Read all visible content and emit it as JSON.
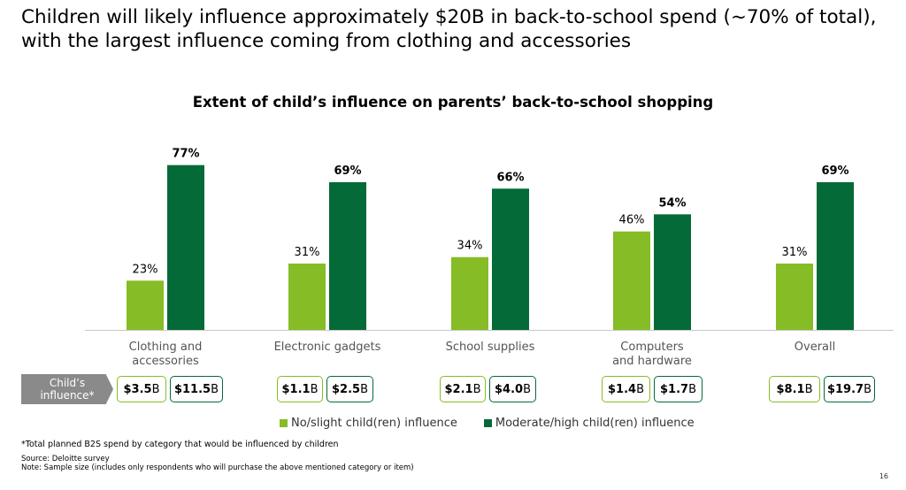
{
  "headline": "Children will likely influence approximately $20B in back-to-school spend (~70% of total), with the largest influence coming from clothing and accessories",
  "colors": {
    "light": "#86bc25",
    "dark": "#046a38"
  },
  "chart_data": {
    "type": "bar",
    "title": "Extent of child’s influence on parents’ back-to-school shopping",
    "categories": [
      [
        "Clothing and",
        "accessories"
      ],
      [
        "Electronic gadgets"
      ],
      [
        "School supplies"
      ],
      [
        "Computers",
        "and hardware"
      ],
      [
        "Overall"
      ]
    ],
    "series": [
      {
        "name": "No/slight child(ren) influence",
        "values": [
          23,
          31,
          34,
          46,
          31
        ],
        "labels": [
          "23%",
          "31%",
          "34%",
          "46%",
          "31%"
        ]
      },
      {
        "name": "Moderate/high child(ren) influence",
        "values": [
          77,
          69,
          66,
          54,
          69
        ],
        "labels": [
          "77%",
          "69%",
          "66%",
          "54%",
          "69%"
        ]
      }
    ],
    "ylim": [
      0,
      100
    ],
    "xlabel": "",
    "ylabel": ""
  },
  "influence_row": {
    "label_line1": "Child’s",
    "label_line2": "influence*",
    "items": [
      {
        "low": {
          "amount": "$3.5",
          "unit": "B"
        },
        "high": {
          "amount": "$11.5",
          "unit": "B"
        }
      },
      {
        "low": {
          "amount": "$1.1",
          "unit": "B"
        },
        "high": {
          "amount": "$2.5",
          "unit": "B"
        }
      },
      {
        "low": {
          "amount": "$2.1",
          "unit": "B"
        },
        "high": {
          "amount": "$4.0",
          "unit": "B"
        }
      },
      {
        "low": {
          "amount": "$1.4",
          "unit": "B"
        },
        "high": {
          "amount": "$1.7",
          "unit": "B"
        }
      },
      {
        "low": {
          "amount": "$8.1",
          "unit": "B"
        },
        "high": {
          "amount": "$19.7",
          "unit": "B"
        }
      }
    ]
  },
  "legend": {
    "light": "No/slight child(ren) influence",
    "dark": "Moderate/high child(ren) influence"
  },
  "footnotes": {
    "asterisk": "*Total planned B2S spend by category that would be influenced by children",
    "source": "Source: Deloitte survey",
    "note": "Note: Sample size (includes only respondents who will purchase the above mentioned category or item)"
  },
  "page_number": "16"
}
